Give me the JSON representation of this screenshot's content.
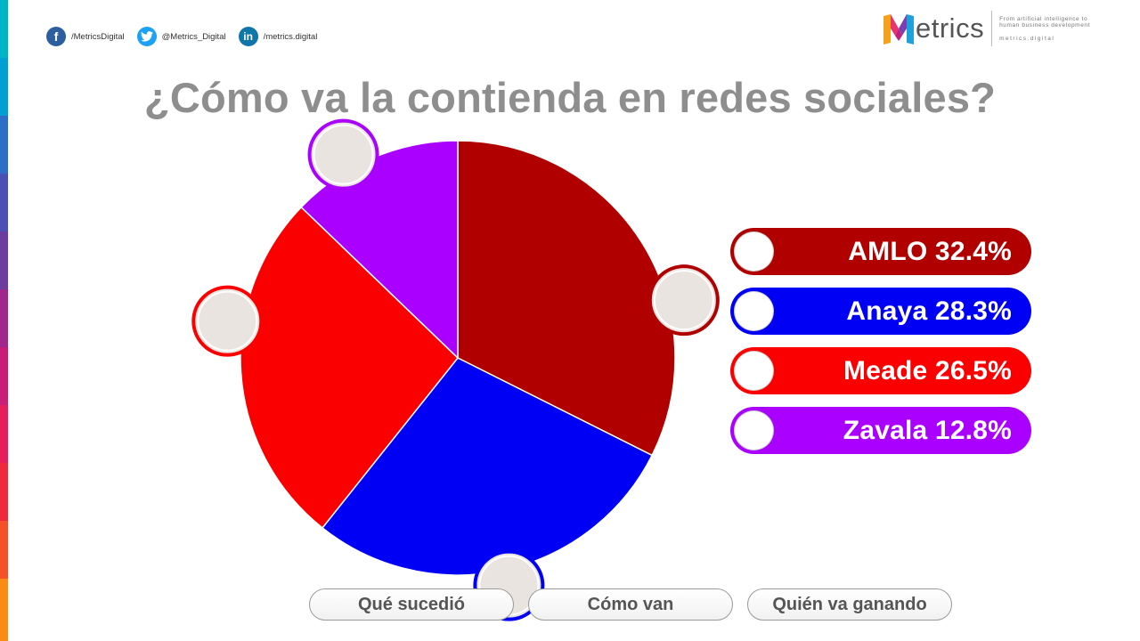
{
  "header": {
    "social": [
      {
        "network": "facebook",
        "icon": "facebook-icon",
        "glyph": "f",
        "color": "#2d5e9e",
        "handle": "/MetricsDigital"
      },
      {
        "network": "twitter",
        "icon": "twitter-icon",
        "glyph": "t",
        "color": "#1da1f2",
        "handle": "@Metrics_Digital"
      },
      {
        "network": "linkedin",
        "icon": "linkedin-icon",
        "glyph": "in",
        "color": "#0e76a8",
        "handle": "/metrics.digital"
      }
    ],
    "logo": {
      "word": "etrics",
      "tagline_1": "From artificial intelligence to",
      "tagline_2": "human business development",
      "url": "metrics.digital"
    }
  },
  "title": "¿Cómo va la contienda en redes sociales?",
  "chart_data": {
    "type": "pie",
    "title": "¿Cómo va la contienda en redes sociales?",
    "slices": [
      {
        "name": "AMLO",
        "value": 32.4,
        "label": "AMLO 32.4%",
        "color": "#b00000"
      },
      {
        "name": "Anaya",
        "value": 28.3,
        "label": "Anaya 28.3%",
        "color": "#0000f5"
      },
      {
        "name": "Meade",
        "value": 26.5,
        "label": "Meade 26.5%",
        "color": "#fb0000"
      },
      {
        "name": "Zavala",
        "value": 12.8,
        "label": "Zavala 12.8%",
        "color": "#aa00ff"
      }
    ],
    "start_angle": "12 o'clock",
    "direction": "clockwise",
    "legend_position": "right"
  },
  "nav": {
    "buttons": [
      "Qué sucedió",
      "Cómo van",
      "Quién va ganando"
    ]
  }
}
